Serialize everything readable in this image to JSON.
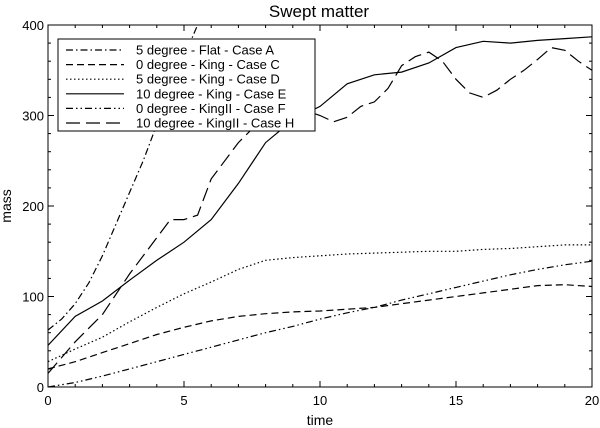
{
  "chart_data": {
    "type": "line",
    "title": "Swept matter",
    "xlabel": "time",
    "ylabel": "mass",
    "xlim": [
      0,
      20
    ],
    "ylim": [
      0,
      400
    ],
    "xticks": [
      0,
      5,
      10,
      15,
      20
    ],
    "yticks": [
      0,
      100,
      200,
      300,
      400
    ],
    "grid": false,
    "legend_position": "top-left",
    "series": [
      {
        "name": "5 degree - Flat - Case A",
        "dash": "dashdot",
        "x": [
          0,
          0.5,
          1,
          1.5,
          2,
          2.5,
          3,
          3.5,
          4,
          4.5,
          5,
          5.5
        ],
        "y": [
          63,
          75,
          92,
          115,
          145,
          180,
          215,
          250,
          290,
          330,
          365,
          400
        ]
      },
      {
        "name": "0 degree - King - Case C",
        "dash": "dash",
        "x": [
          0,
          1,
          2,
          3,
          4,
          5,
          6,
          7,
          8,
          9,
          10,
          11,
          12,
          13,
          14,
          15,
          16,
          17,
          18,
          19,
          20
        ],
        "y": [
          20,
          28,
          38,
          48,
          58,
          66,
          73,
          78,
          81,
          83,
          84,
          86,
          88,
          92,
          96,
          100,
          104,
          108,
          112,
          113,
          111
        ]
      },
      {
        "name": "5 degree - King - Case D",
        "dash": "dot",
        "x": [
          0,
          1,
          2,
          3,
          4,
          5,
          6,
          7,
          8,
          9,
          10,
          11,
          12,
          13,
          14,
          15,
          16,
          17,
          18,
          19,
          20
        ],
        "y": [
          28,
          42,
          55,
          72,
          88,
          103,
          116,
          130,
          140,
          143,
          145,
          147,
          148,
          149,
          150,
          150,
          152,
          153,
          155,
          157,
          157
        ]
      },
      {
        "name": "10 degree - King - Case E",
        "dash": "solid",
        "x": [
          0,
          1,
          2,
          3,
          4,
          5,
          6,
          7,
          8,
          9,
          10,
          11,
          12,
          13,
          14,
          15,
          16,
          17,
          18,
          19,
          20
        ],
        "y": [
          46,
          78,
          95,
          118,
          140,
          160,
          185,
          225,
          270,
          295,
          310,
          335,
          345,
          348,
          358,
          375,
          382,
          380,
          383,
          385,
          387
        ]
      },
      {
        "name": "0 degree - KingII - Case F",
        "dash": "dashdotdot",
        "x": [
          0,
          1,
          2,
          3,
          4,
          5,
          6,
          7,
          8,
          9,
          10,
          11,
          12,
          13,
          14,
          15,
          16,
          17,
          18,
          19,
          20
        ],
        "y": [
          0,
          5,
          12,
          20,
          28,
          36,
          44,
          52,
          60,
          67,
          75,
          82,
          88,
          96,
          103,
          110,
          117,
          124,
          130,
          135,
          139
        ]
      },
      {
        "name": "10 degree - KingII - Case H",
        "dash": "longdash",
        "x": [
          0,
          1,
          2,
          3,
          4,
          4.5,
          5,
          5.5,
          6,
          7,
          8,
          9,
          10,
          10.5,
          11,
          11.5,
          12,
          12.5,
          13,
          13.5,
          14,
          14.5,
          15,
          15.5,
          16,
          16.5,
          17,
          17.5,
          18,
          18.5,
          19,
          19.5,
          20
        ],
        "y": [
          15,
          50,
          80,
          125,
          165,
          185,
          185,
          190,
          230,
          270,
          300,
          310,
          300,
          293,
          298,
          310,
          315,
          330,
          355,
          365,
          370,
          360,
          340,
          325,
          320,
          328,
          340,
          350,
          362,
          375,
          372,
          360,
          350
        ]
      }
    ]
  }
}
